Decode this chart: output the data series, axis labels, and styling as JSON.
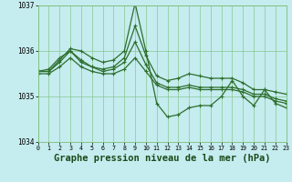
{
  "title": "Graphe pression niveau de la mer (hPa)",
  "background_color": "#c5ecee",
  "grid_color": "#7bbf7b",
  "line_color": "#2d6e2d",
  "xlim": [
    0,
    23
  ],
  "ylim": [
    1034,
    1037
  ],
  "yticks": [
    1034,
    1035,
    1036,
    1037
  ],
  "xticks": [
    0,
    1,
    2,
    3,
    4,
    5,
    6,
    7,
    8,
    9,
    10,
    11,
    12,
    13,
    14,
    15,
    16,
    17,
    18,
    19,
    20,
    21,
    22,
    23
  ],
  "series": [
    [
      1035.55,
      1035.55,
      1035.8,
      1036.05,
      1036.0,
      1035.85,
      1035.75,
      1035.8,
      1036.0,
      1037.05,
      1036.0,
      1034.85,
      1034.55,
      1034.6,
      1034.75,
      1034.8,
      1034.8,
      1035.0,
      1035.35,
      1035.0,
      1034.8,
      1035.15,
      1034.85,
      1034.75
    ],
    [
      1035.55,
      1035.55,
      1035.75,
      1036.0,
      1035.75,
      1035.65,
      1035.6,
      1035.65,
      1035.85,
      1036.55,
      1035.9,
      1035.45,
      1035.35,
      1035.4,
      1035.5,
      1035.45,
      1035.4,
      1035.4,
      1035.4,
      1035.3,
      1035.15,
      1035.15,
      1035.1,
      1035.05
    ],
    [
      1035.55,
      1035.6,
      1035.85,
      1036.0,
      1035.8,
      1035.65,
      1035.55,
      1035.6,
      1035.75,
      1036.2,
      1035.7,
      1035.3,
      1035.2,
      1035.2,
      1035.25,
      1035.2,
      1035.2,
      1035.2,
      1035.2,
      1035.15,
      1035.05,
      1035.05,
      1034.95,
      1034.9
    ],
    [
      1035.5,
      1035.5,
      1035.65,
      1035.85,
      1035.65,
      1035.55,
      1035.5,
      1035.5,
      1035.6,
      1035.85,
      1035.55,
      1035.25,
      1035.15,
      1035.15,
      1035.2,
      1035.15,
      1035.15,
      1035.15,
      1035.15,
      1035.1,
      1035.0,
      1035.0,
      1034.9,
      1034.85
    ]
  ],
  "marker_size": 2.5,
  "line_width": 0.9,
  "title_fontsize": 7.5,
  "tick_fontsize": 6.0,
  "figsize": [
    3.2,
    2.0
  ],
  "dpi": 100
}
